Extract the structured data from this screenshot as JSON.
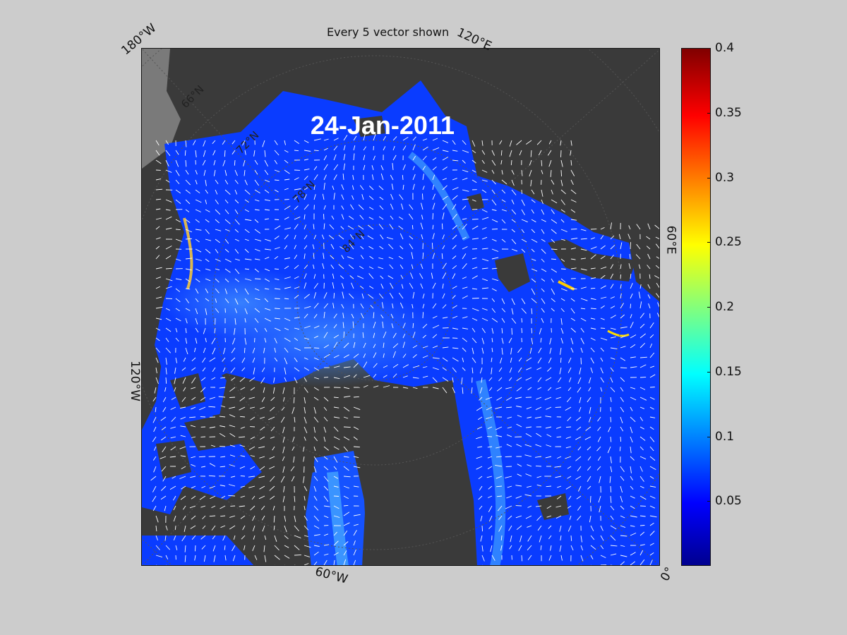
{
  "title": "Every 5 vector shown",
  "date": "24-Jan-2011",
  "longitude_labels": {
    "w180": "180°W",
    "e120": "120°E",
    "e60": "60°E",
    "w120": "120°W",
    "w60": "60°W",
    "zero": "0°"
  },
  "latitude_labels": [
    "66°N",
    "72°N",
    "78°N",
    "84°N"
  ],
  "colorbar": {
    "colormap": "jet",
    "range": [
      0,
      0.4
    ],
    "ticks": [
      "0.4",
      "0.35",
      "0.3",
      "0.25",
      "0.2",
      "0.15",
      "0.1",
      "0.05"
    ],
    "tick_values": [
      0.4,
      0.35,
      0.3,
      0.25,
      0.2,
      0.15,
      0.1,
      0.05
    ]
  },
  "colors": {
    "background": "#cccccc",
    "land": "#3a3a3a",
    "land_outside_domain": "#7a7a7a",
    "ice_low": "#0a3cff",
    "ice_mid": "#1e6cff",
    "vectors": "#ffffff"
  }
}
